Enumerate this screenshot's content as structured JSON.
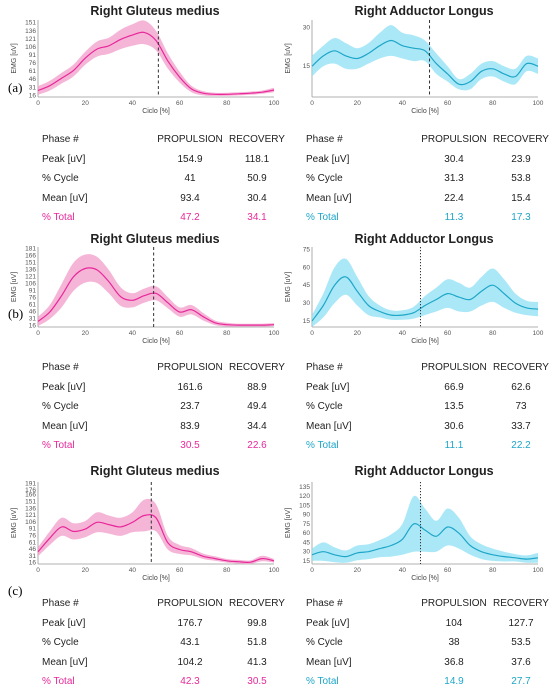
{
  "row_labels": [
    "(a)",
    "(b)",
    "(c)"
  ],
  "colors": {
    "pink": "#e8289a",
    "pink_fill": "#f29cc9",
    "cyan": "#1ea6c8",
    "cyan_fill": "#8fe0f4",
    "text": "#222222"
  },
  "chart_data": [
    {
      "type": "line",
      "title": "Right Gluteus medius",
      "xlabel": "Ciclo [%]",
      "ylabel": "EMG [uV]",
      "color": "pink",
      "ylim": [
        13,
        156
      ],
      "xlim": [
        0,
        100
      ],
      "yticks": [
        151,
        136,
        121,
        106,
        91,
        76,
        61,
        46,
        31,
        16
      ],
      "xticks": [
        0,
        20,
        40,
        60,
        80,
        100
      ],
      "marker_x": 51,
      "marker_style": "dashed",
      "mean": [
        [
          0,
          25
        ],
        [
          5,
          34
        ],
        [
          10,
          48
        ],
        [
          15,
          62
        ],
        [
          20,
          85
        ],
        [
          25,
          102
        ],
        [
          30,
          108
        ],
        [
          35,
          120
        ],
        [
          40,
          128
        ],
        [
          45,
          133
        ],
        [
          50,
          118
        ],
        [
          55,
          80
        ],
        [
          60,
          50
        ],
        [
          65,
          28
        ],
        [
          70,
          20
        ],
        [
          75,
          18
        ],
        [
          80,
          18
        ],
        [
          85,
          19
        ],
        [
          90,
          20
        ],
        [
          95,
          22
        ],
        [
          100,
          26
        ]
      ],
      "band": [
        8,
        9,
        10,
        11,
        12,
        14,
        15,
        18,
        20,
        22,
        18,
        14,
        10,
        6,
        4,
        3,
        3,
        3,
        3,
        3,
        4
      ],
      "table": {
        "header": [
          "Phase #",
          "PROPULSION",
          "RECOVERY"
        ],
        "rows": [
          [
            "Peak [uV]",
            "154.9",
            "118.1"
          ],
          [
            "% Cycle",
            "41",
            "50.9"
          ],
          [
            "Mean [uV]",
            "93.4",
            "30.4"
          ]
        ],
        "total": [
          "% Total",
          "47.2",
          "34.1"
        ]
      }
    },
    {
      "type": "line",
      "title": "Right Adductor Longus",
      "xlabel": "Ciclo [%]",
      "ylabel": "EMG [uV]",
      "color": "cyan",
      "ylim": [
        3,
        33
      ],
      "xlim": [
        0,
        100
      ],
      "yticks": [
        30,
        15
      ],
      "xticks": [
        0,
        20,
        40,
        60,
        80,
        100
      ],
      "marker_x": 52,
      "marker_style": "dashed",
      "mean": [
        [
          0,
          15
        ],
        [
          5,
          19
        ],
        [
          10,
          21
        ],
        [
          15,
          19
        ],
        [
          20,
          18
        ],
        [
          25,
          20
        ],
        [
          30,
          23
        ],
        [
          35,
          25
        ],
        [
          40,
          23
        ],
        [
          45,
          22
        ],
        [
          50,
          21
        ],
        [
          55,
          16
        ],
        [
          60,
          12
        ],
        [
          65,
          8
        ],
        [
          70,
          9
        ],
        [
          75,
          13
        ],
        [
          80,
          14
        ],
        [
          85,
          12
        ],
        [
          90,
          11
        ],
        [
          95,
          16
        ],
        [
          100,
          15
        ]
      ],
      "band": [
        4,
        4,
        5,
        5,
        4,
        4,
        5,
        6,
        5,
        5,
        4,
        4,
        3,
        2,
        3,
        3,
        3,
        3,
        3,
        3,
        3
      ],
      "table": {
        "header": [
          "Phase #",
          "PROPULSION",
          "RECOVERY"
        ],
        "rows": [
          [
            "Peak [uV]",
            "30.4",
            "23.9"
          ],
          [
            "% Cycle",
            "31.3",
            "53.8"
          ],
          [
            "Mean [uV]",
            "22.4",
            "15.4"
          ]
        ],
        "total": [
          "% Total",
          "11.3",
          "17.3"
        ]
      }
    },
    {
      "type": "line",
      "title": "Right Gluteus medius",
      "xlabel": "Ciclo [%]",
      "ylabel": "EMG [uV]",
      "color": "pink",
      "ylim": [
        13,
        184
      ],
      "xlim": [
        0,
        100
      ],
      "yticks": [
        181,
        166,
        151,
        136,
        121,
        106,
        91,
        76,
        61,
        46,
        31,
        16
      ],
      "xticks": [
        0,
        20,
        40,
        60,
        80,
        100
      ],
      "marker_x": 49,
      "marker_style": "dashed",
      "mean": [
        [
          0,
          25
        ],
        [
          5,
          45
        ],
        [
          10,
          80
        ],
        [
          15,
          120
        ],
        [
          20,
          138
        ],
        [
          25,
          135
        ],
        [
          30,
          110
        ],
        [
          35,
          78
        ],
        [
          40,
          70
        ],
        [
          45,
          80
        ],
        [
          50,
          85
        ],
        [
          55,
          65
        ],
        [
          60,
          45
        ],
        [
          65,
          50
        ],
        [
          70,
          35
        ],
        [
          75,
          22
        ],
        [
          80,
          18
        ],
        [
          85,
          17
        ],
        [
          90,
          17
        ],
        [
          95,
          17
        ],
        [
          100,
          18
        ]
      ],
      "band": [
        10,
        15,
        25,
        30,
        30,
        28,
        25,
        20,
        15,
        15,
        15,
        12,
        10,
        10,
        8,
        5,
        4,
        3,
        3,
        3,
        3
      ],
      "table": {
        "header": [
          "Phase #",
          "PROPULSION",
          "RECOVERY"
        ],
        "rows": [
          [
            "Peak [uV]",
            "161.6",
            "88.9"
          ],
          [
            "% Cycle",
            "23.7",
            "49.4"
          ],
          [
            "Mean [uV]",
            "83.9",
            "34.4"
          ]
        ],
        "total": [
          "% Total",
          "30.5",
          "22.6"
        ]
      }
    },
    {
      "type": "line",
      "title": "Right Adductor Longus",
      "xlabel": "Ciclo [%]",
      "ylabel": "EMG [uV]",
      "color": "cyan",
      "ylim": [
        10,
        77
      ],
      "xlim": [
        0,
        100
      ],
      "yticks": [
        75,
        60,
        45,
        30,
        15
      ],
      "xticks": [
        0,
        20,
        40,
        60,
        80,
        100
      ],
      "marker_x": 48,
      "marker_style": "dotted",
      "mean": [
        [
          0,
          15
        ],
        [
          5,
          28
        ],
        [
          10,
          45
        ],
        [
          15,
          52
        ],
        [
          20,
          40
        ],
        [
          25,
          28
        ],
        [
          30,
          23
        ],
        [
          35,
          20
        ],
        [
          40,
          20
        ],
        [
          45,
          22
        ],
        [
          50,
          28
        ],
        [
          55,
          33
        ],
        [
          60,
          38
        ],
        [
          65,
          35
        ],
        [
          70,
          33
        ],
        [
          75,
          40
        ],
        [
          80,
          45
        ],
        [
          85,
          38
        ],
        [
          90,
          30
        ],
        [
          95,
          26
        ],
        [
          100,
          25
        ]
      ],
      "band": [
        5,
        10,
        15,
        15,
        12,
        8,
        5,
        4,
        4,
        5,
        8,
        10,
        12,
        12,
        10,
        12,
        14,
        12,
        8,
        6,
        6
      ],
      "table": {
        "header": [
          "Phase #",
          "PROPULSION",
          "RECOVERY"
        ],
        "rows": [
          [
            "Peak [uV]",
            "66.9",
            "62.6"
          ],
          [
            "% Cycle",
            "13.5",
            "73"
          ],
          [
            "Mean [uV]",
            "30.6",
            "33.7"
          ]
        ],
        "total": [
          "% Total",
          "11.1",
          "22.2"
        ]
      }
    },
    {
      "type": "line",
      "title": "Right Gluteus medius",
      "xlabel": "Ciclo [%]",
      "ylabel": "EMG [uV]",
      "color": "pink",
      "ylim": [
        13,
        194
      ],
      "xlim": [
        0,
        100
      ],
      "yticks": [
        191,
        176,
        166,
        151,
        136,
        121,
        106,
        91,
        76,
        61,
        46,
        31,
        16
      ],
      "xticks": [
        0,
        20,
        40,
        60,
        80,
        100
      ],
      "marker_x": 48,
      "marker_style": "dashed",
      "mean": [
        [
          0,
          40
        ],
        [
          5,
          70
        ],
        [
          10,
          95
        ],
        [
          15,
          85
        ],
        [
          20,
          90
        ],
        [
          25,
          105
        ],
        [
          30,
          100
        ],
        [
          35,
          95
        ],
        [
          40,
          105
        ],
        [
          45,
          120
        ],
        [
          50,
          115
        ],
        [
          55,
          60
        ],
        [
          60,
          45
        ],
        [
          65,
          40
        ],
        [
          70,
          30
        ],
        [
          75,
          25
        ],
        [
          80,
          20
        ],
        [
          85,
          18
        ],
        [
          90,
          17
        ],
        [
          95,
          25
        ],
        [
          100,
          20
        ]
      ],
      "band": [
        10,
        15,
        20,
        18,
        18,
        22,
        20,
        20,
        22,
        35,
        30,
        15,
        10,
        8,
        6,
        5,
        4,
        4,
        4,
        6,
        4
      ],
      "table": {
        "header": [
          "Phase #",
          "PROPULSION",
          "RECOVERY"
        ],
        "rows": [
          [
            "Peak [uV]",
            "176.7",
            "99.8"
          ],
          [
            "% Cycle",
            "43.1",
            "51.8"
          ],
          [
            "Mean [uV]",
            "104.2",
            "41.3"
          ]
        ],
        "total": [
          "% Total",
          "42.3",
          "30.5"
        ]
      }
    },
    {
      "type": "line",
      "title": "Right Adductor Longus",
      "xlabel": "Ciclo [%]",
      "ylabel": "EMG [uV]",
      "color": "cyan",
      "ylim": [
        10,
        143
      ],
      "xlim": [
        0,
        100
      ],
      "yticks": [
        135,
        120,
        105,
        90,
        75,
        60,
        45,
        30,
        15
      ],
      "xticks": [
        0,
        20,
        40,
        60,
        80,
        100
      ],
      "marker_x": 48,
      "marker_style": "dotted",
      "mean": [
        [
          0,
          25
        ],
        [
          5,
          30
        ],
        [
          10,
          25
        ],
        [
          15,
          22
        ],
        [
          20,
          28
        ],
        [
          25,
          30
        ],
        [
          30,
          35
        ],
        [
          35,
          40
        ],
        [
          40,
          50
        ],
        [
          45,
          75
        ],
        [
          50,
          65
        ],
        [
          55,
          55
        ],
        [
          60,
          70
        ],
        [
          65,
          60
        ],
        [
          70,
          40
        ],
        [
          75,
          30
        ],
        [
          80,
          25
        ],
        [
          85,
          22
        ],
        [
          90,
          20
        ],
        [
          95,
          18
        ],
        [
          100,
          20
        ]
      ],
      "band": [
        10,
        15,
        12,
        10,
        12,
        12,
        14,
        18,
        25,
        45,
        35,
        25,
        30,
        25,
        15,
        12,
        10,
        8,
        6,
        6,
        8
      ],
      "table": {
        "header": [
          "Phase #",
          "PROPULSION",
          "RECOVERY"
        ],
        "rows": [
          [
            "Peak [uV]",
            "104",
            "127.7"
          ],
          [
            "% Cycle",
            "38",
            "53.5"
          ],
          [
            "Mean [uV]",
            "36.8",
            "37.6"
          ]
        ],
        "total": [
          "% Total",
          "14.9",
          "27.7"
        ]
      }
    }
  ]
}
